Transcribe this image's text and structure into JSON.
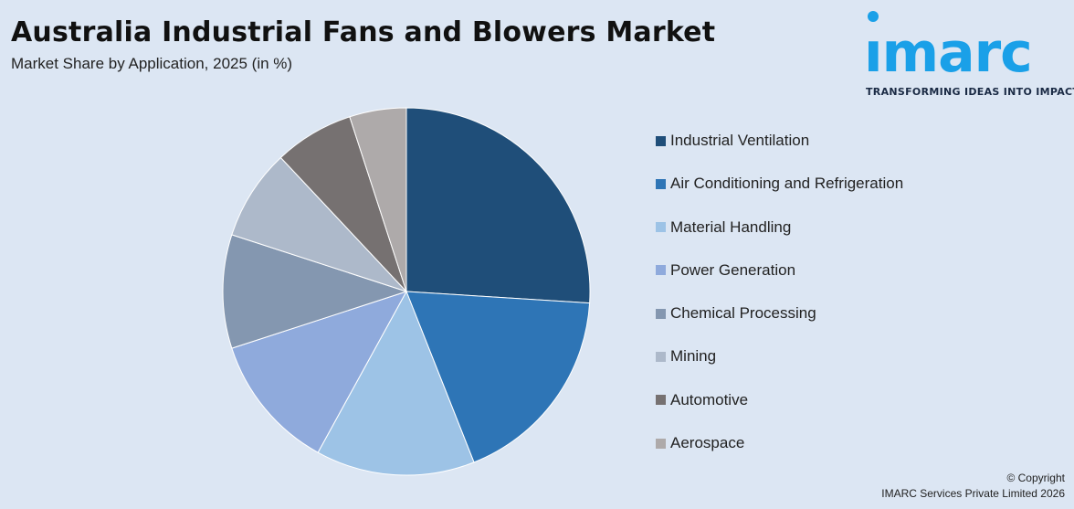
{
  "chart_data": {
    "type": "pie",
    "title": "Australia Industrial Fans and Blowers Market",
    "subtitle": "Market Share by Application, 2025 (in %)",
    "categories": [
      "Industrial Ventilation",
      "Air Conditioning and Refrigeration",
      "Material Handling",
      "Power Generation",
      "Chemical Processing",
      "Mining",
      "Automotive",
      "Aerospace"
    ],
    "values": [
      26,
      18,
      14,
      12,
      10,
      8,
      7,
      5
    ],
    "colors": [
      "#1f4e79",
      "#2e75b6",
      "#9dc3e6",
      "#8faadc",
      "#8497b0",
      "#adb9ca",
      "#767171",
      "#aeaaaa"
    ],
    "legend_position": "right"
  },
  "logo": {
    "word": "ımarc",
    "tagline": "TRANSFORMING IDEAS INTO IMPACT"
  },
  "footer": {
    "copyright": "© Copyright",
    "company": "IMARC Services Private Limited 2026"
  }
}
